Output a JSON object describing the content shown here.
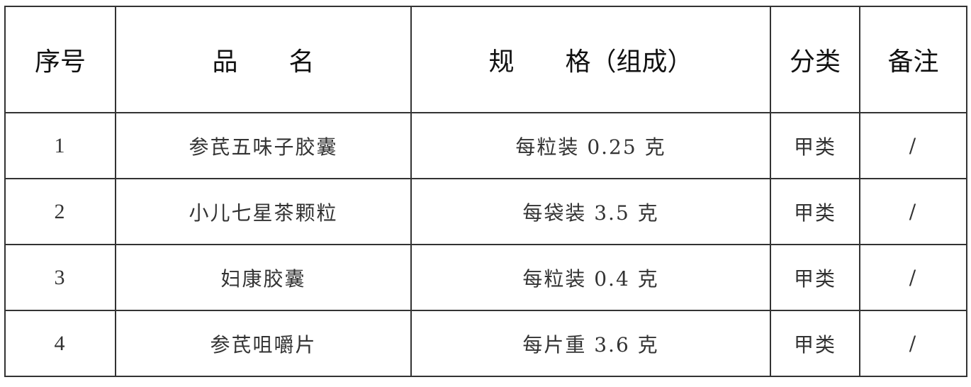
{
  "table": {
    "headers": [
      "序号",
      "品　　名",
      "规　　格（组成）",
      "分类",
      "备注"
    ],
    "rows": [
      [
        "1",
        "参芪五味子胶囊",
        "每粒装 0.25 克",
        "甲类",
        "/"
      ],
      [
        "2",
        "小儿七星茶颗粒",
        "每袋装 3.5 克",
        "甲类",
        "/"
      ],
      [
        "3",
        "妇康胶囊",
        "每粒装 0.4 克",
        "甲类",
        "/"
      ],
      [
        "4",
        "参芪咀嚼片",
        "每片重 3.6 克",
        "甲类",
        "/"
      ]
    ]
  }
}
